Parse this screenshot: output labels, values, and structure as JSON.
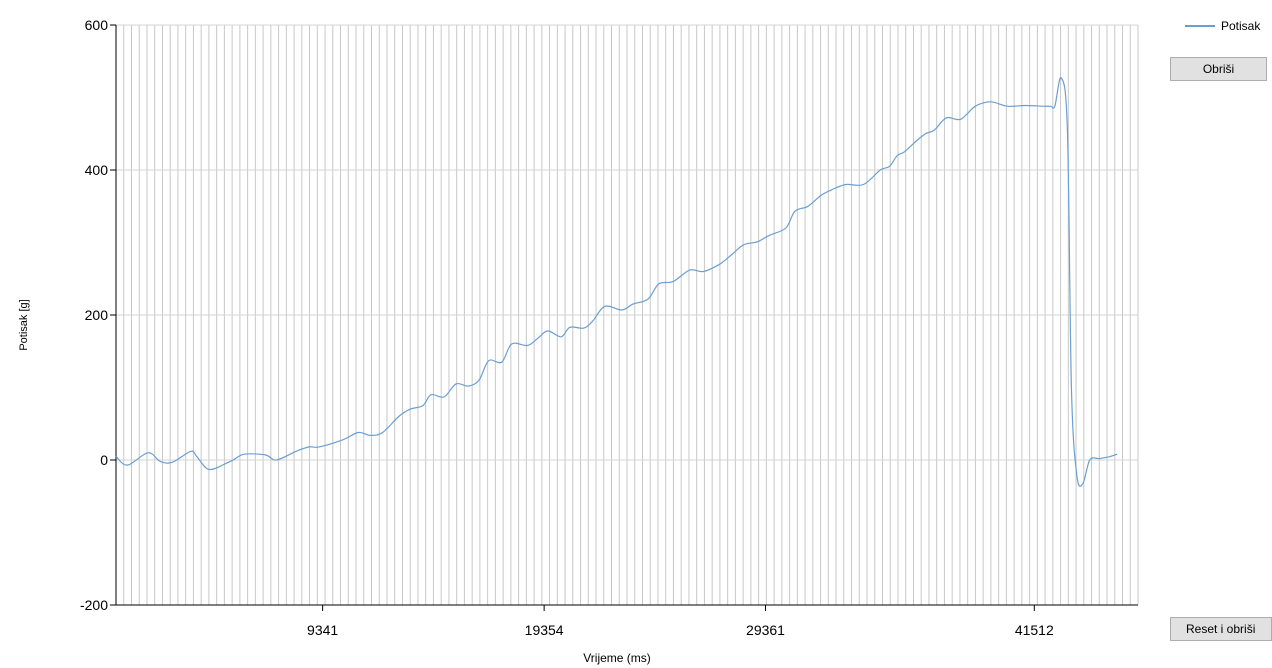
{
  "chart_data": {
    "type": "line",
    "xlabel": "Vrijeme (ms)",
    "ylabel": "Potisak [g]",
    "xlim": [
      0,
      46200
    ],
    "ylim": [
      -200,
      600
    ],
    "y_ticks": [
      -200,
      0,
      200,
      400,
      600
    ],
    "x_ticks": [
      9341,
      19354,
      29361,
      41512
    ],
    "grid": true,
    "legend": "top-right",
    "series": [
      {
        "name": "Potisak",
        "color": "#6a9fd4",
        "x": [
          0,
          520,
          1450,
          2000,
          2560,
          3380,
          3650,
          4200,
          5020,
          5300,
          5800,
          6750,
          7250,
          8140,
          8730,
          9190,
          10270,
          10950,
          11500,
          12050,
          12780,
          13280,
          13870,
          14240,
          14830,
          15370,
          15920,
          16410,
          16850,
          17440,
          17890,
          18610,
          19070,
          19520,
          20120,
          20520,
          21150,
          21560,
          22100,
          22870,
          23370,
          24050,
          24540,
          25180,
          25940,
          26560,
          27280,
          27860,
          28380,
          28990,
          29540,
          30280,
          30690,
          31280,
          31870,
          32370,
          33000,
          33790,
          34550,
          34960,
          35320,
          35640,
          36180,
          36590,
          36990,
          37540,
          38180,
          38850,
          39530,
          40290,
          41110,
          41920,
          42250,
          42440,
          42730,
          43010,
          43190,
          43430,
          43700,
          44020,
          44450,
          44840,
          45250
        ],
        "y": [
          5,
          -7,
          10,
          -2,
          -3,
          12,
          5,
          -13,
          -4,
          0,
          8,
          7,
          0,
          12,
          18,
          18,
          28,
          38,
          34,
          38,
          60,
          70,
          75,
          90,
          87,
          105,
          102,
          110,
          137,
          135,
          160,
          158,
          168,
          178,
          170,
          183,
          182,
          192,
          212,
          207,
          215,
          222,
          243,
          246,
          262,
          260,
          270,
          284,
          297,
          301,
          310,
          320,
          343,
          350,
          365,
          373,
          380,
          380,
          400,
          405,
          420,
          425,
          440,
          450,
          455,
          472,
          470,
          488,
          494,
          488,
          489,
          488,
          488,
          488,
          527,
          455,
          100,
          -20,
          -33,
          0,
          2,
          4,
          8
        ]
      }
    ]
  },
  "buttons": {
    "clear_label": "Obriši",
    "reset_label": "Reset i obriši"
  }
}
